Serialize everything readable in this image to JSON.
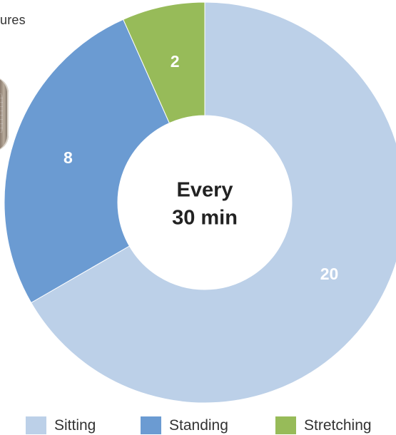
{
  "page": {
    "top_text_fragment": "ures"
  },
  "chart_data": {
    "type": "pie",
    "center_label": [
      "Every",
      "30 min"
    ],
    "categories": [
      "Sitting",
      "Standing",
      "Stretching"
    ],
    "values": [
      20,
      8,
      2
    ],
    "colors": [
      "#bcd0e8",
      "#6b9bd2",
      "#97bb59"
    ],
    "legend": [
      "Sitting",
      "Standing",
      "Stretching"
    ]
  }
}
